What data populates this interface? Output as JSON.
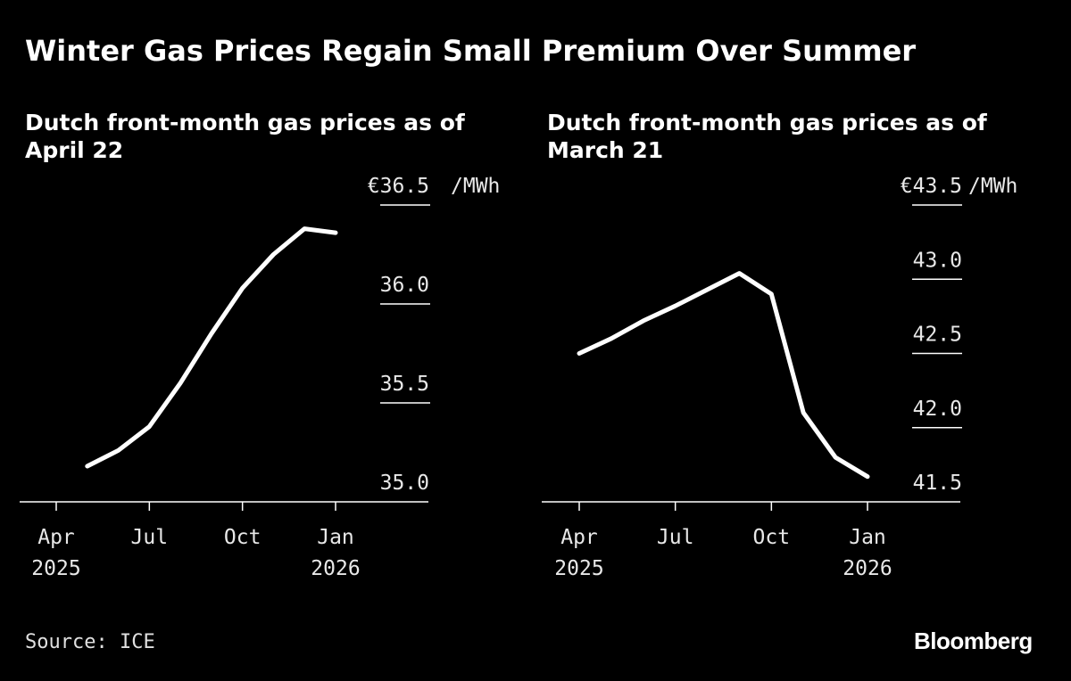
{
  "title": "Winter Gas Prices Regain Small Premium Over Summer",
  "source": "Source: ICE",
  "brand": "Bloomberg",
  "colors": {
    "background": "#000000",
    "line": "#ffffff",
    "text": "#ffffff"
  },
  "chart_data": [
    {
      "type": "line",
      "title": "Dutch front-month gas prices as of April 22",
      "unit_label": "/MWh",
      "ylim": [
        35.0,
        36.5
      ],
      "y_ticks": [
        {
          "value": 36.5,
          "label": "€36.5"
        },
        {
          "value": 36.0,
          "label": "36.0"
        },
        {
          "value": 35.5,
          "label": "35.5"
        },
        {
          "value": 35.0,
          "label": "35.0"
        }
      ],
      "x_ticks": [
        {
          "date": "2025-04",
          "label": "Apr",
          "year": "2025"
        },
        {
          "date": "2025-07",
          "label": "Jul",
          "year": ""
        },
        {
          "date": "2025-10",
          "label": "Oct",
          "year": ""
        },
        {
          "date": "2026-01",
          "label": "Jan",
          "year": "2026"
        }
      ],
      "series": [
        {
          "x": [
            "2025-05",
            "2025-06",
            "2025-07",
            "2025-08",
            "2025-09",
            "2025-10",
            "2025-11",
            "2025-12",
            "2026-01"
          ],
          "values": [
            35.18,
            35.26,
            35.38,
            35.6,
            35.85,
            36.08,
            36.25,
            36.38,
            36.36
          ]
        }
      ]
    },
    {
      "type": "line",
      "title": "Dutch front-month gas prices as of March 21",
      "unit_label": "/MWh",
      "ylim": [
        41.5,
        43.5
      ],
      "y_ticks": [
        {
          "value": 43.5,
          "label": "€43.5"
        },
        {
          "value": 43.0,
          "label": "43.0"
        },
        {
          "value": 42.5,
          "label": "42.5"
        },
        {
          "value": 42.0,
          "label": "42.0"
        },
        {
          "value": 41.5,
          "label": "41.5"
        }
      ],
      "x_ticks": [
        {
          "date": "2025-04",
          "label": "Apr",
          "year": "2025"
        },
        {
          "date": "2025-07",
          "label": "Jul",
          "year": ""
        },
        {
          "date": "2025-10",
          "label": "Oct",
          "year": ""
        },
        {
          "date": "2026-01",
          "label": "Jan",
          "year": "2026"
        }
      ],
      "series": [
        {
          "x": [
            "2025-04",
            "2025-05",
            "2025-06",
            "2025-07",
            "2025-08",
            "2025-09",
            "2025-10",
            "2025-11",
            "2025-12",
            "2026-01"
          ],
          "values": [
            42.5,
            42.6,
            42.72,
            42.82,
            42.93,
            43.04,
            42.9,
            42.1,
            41.8,
            41.67
          ]
        }
      ]
    }
  ]
}
